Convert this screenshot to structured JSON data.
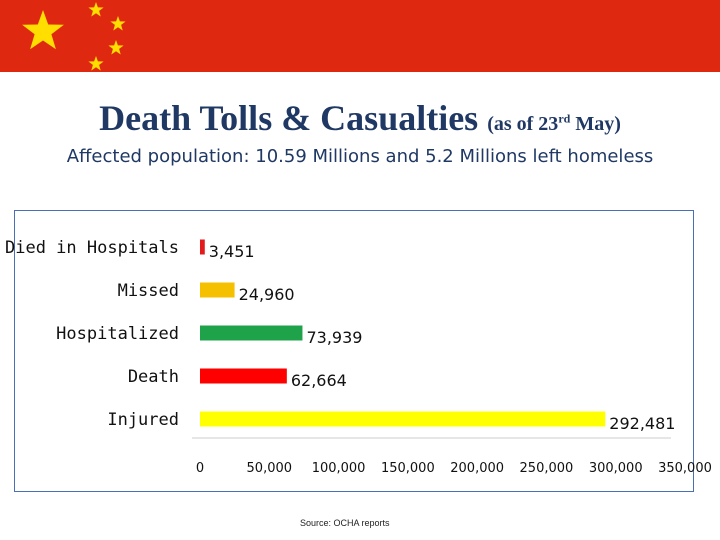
{
  "title": "Death Tolls & Casualties",
  "title_note": "(as of 23",
  "title_note_sup": "rd",
  "title_note_end": " May)",
  "subtitle": "Affected population: 10.59 Millions and 5.2 Millions left homeless",
  "source": "Source: OCHA reports",
  "colors": {
    "banner": "#de2910",
    "stars": "#ffde00",
    "title": "#1f3864",
    "frame": "#4a6fb5"
  },
  "chart_data": {
    "type": "bar",
    "orientation": "horizontal",
    "categories": [
      "Died in Hospitals",
      "Missed",
      "Hospitalized",
      "Death",
      "Injured"
    ],
    "values": [
      3451,
      24960,
      73939,
      62664,
      292481
    ],
    "value_labels": [
      "3,451",
      "24,960",
      "73,939",
      "62,664",
      "292,481"
    ],
    "bar_colors": [
      "#e31a1c",
      "#f5c000",
      "#1fa34a",
      "#ff0000",
      "#ffff00"
    ],
    "xlim": [
      0,
      350000
    ],
    "x_ticks": [
      0,
      50000,
      100000,
      150000,
      200000,
      250000,
      300000,
      350000
    ],
    "x_tick_labels": [
      "0",
      "50,000",
      "100,000",
      "150,000",
      "200,000",
      "250,000",
      "300,000",
      "350,000"
    ],
    "grid": false,
    "title": "",
    "xlabel": "",
    "ylabel": ""
  }
}
